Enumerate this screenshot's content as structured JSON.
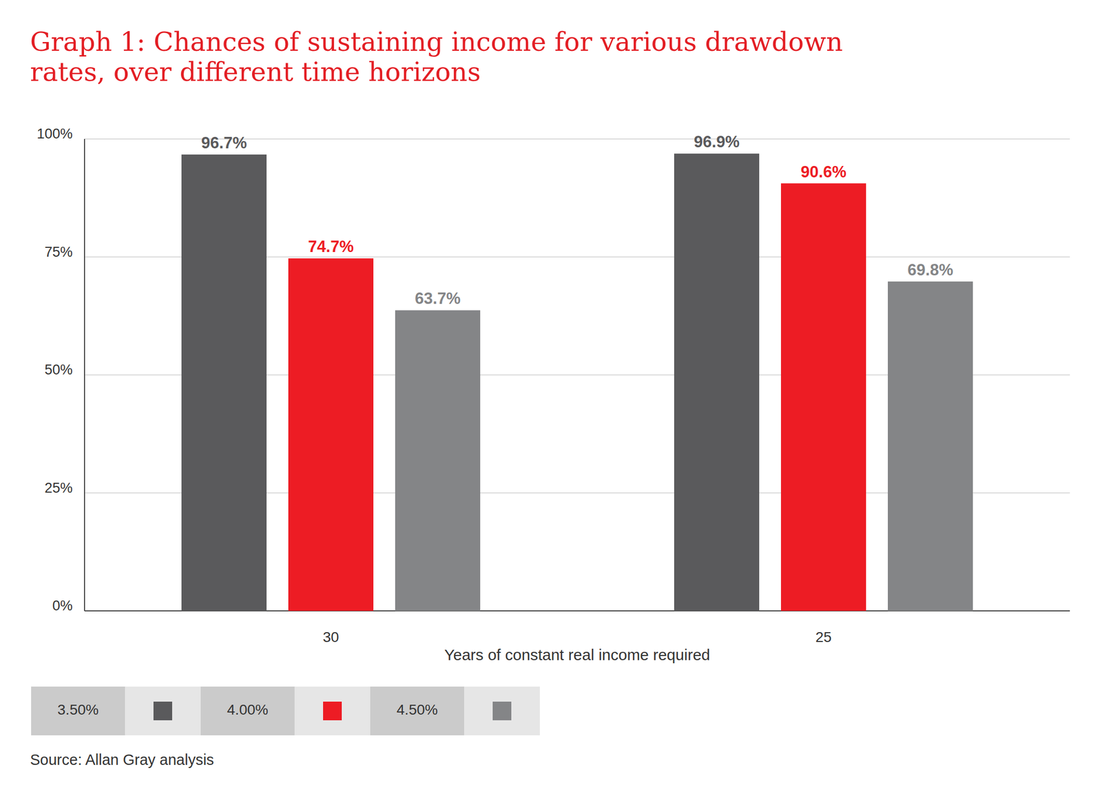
{
  "chart_data": {
    "type": "bar",
    "title": "Graph 1: Chances of sustaining income for various drawdown rates, over different time horizons",
    "x_label": "Years of constant real income required",
    "source": "Source: Allan Gray analysis",
    "categories": [
      "30",
      "25"
    ],
    "series": [
      {
        "name": "3.50%",
        "color": "#5a5a5c",
        "values": [
          96.7,
          96.9
        ],
        "value_labels": [
          "96.7%",
          "96.9%"
        ]
      },
      {
        "name": "4.00%",
        "color": "#ed1c24",
        "values": [
          74.7,
          90.6
        ],
        "value_labels": [
          "74.7%",
          "90.6%"
        ]
      },
      {
        "name": "4.50%",
        "color": "#848587",
        "values": [
          63.7,
          69.8
        ],
        "value_labels": [
          "63.7%",
          "69.8%"
        ]
      }
    ],
    "ylim": [
      0,
      100
    ],
    "yticks": [
      {
        "value": 0,
        "label": "0%"
      },
      {
        "value": 25,
        "label": "25%"
      },
      {
        "value": 50,
        "label": "50%"
      },
      {
        "value": 75,
        "label": "75%"
      },
      {
        "value": 100,
        "label": "100%"
      }
    ],
    "grid": true,
    "legend": "bottom",
    "data_labels": true
  }
}
